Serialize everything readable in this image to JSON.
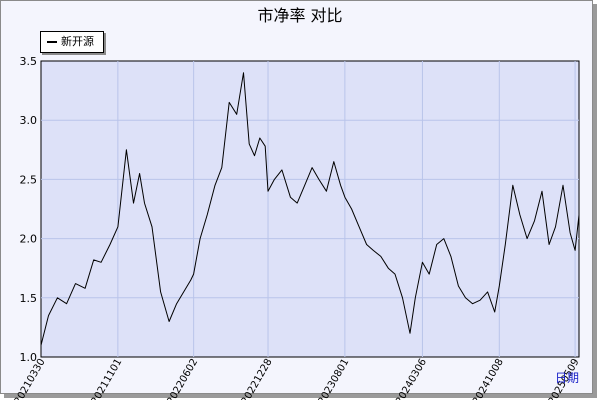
{
  "chart_data": {
    "type": "line",
    "title": "市净率  对比",
    "xlabel": "日期",
    "ylabel": "",
    "ylim": [
      1.0,
      3.5
    ],
    "yticks": [
      "1.0",
      "1.5",
      "2.0",
      "2.5",
      "3.0",
      "3.5"
    ],
    "xtick_labels": [
      "20210330",
      "20211101",
      "20220602",
      "20221228",
      "20230801",
      "20240306",
      "20241008",
      "20250509"
    ],
    "grid": true,
    "legend_position": "top-left",
    "colors": {
      "background": "#f4f5fd",
      "plot_area": "#dde1f8",
      "grid": "#b9c4ea",
      "line": "#000000"
    },
    "series": [
      {
        "name": "新开源",
        "x": [
          "2021-03-30",
          "2021-04-20",
          "2021-05-15",
          "2021-06-10",
          "2021-07-05",
          "2021-08-01",
          "2021-08-25",
          "2021-09-15",
          "2021-10-10",
          "2021-11-01",
          "2021-11-25",
          "2021-12-15",
          "2022-01-01",
          "2022-01-15",
          "2022-02-05",
          "2022-03-01",
          "2022-03-25",
          "2022-04-15",
          "2022-05-05",
          "2022-05-25",
          "2022-06-02",
          "2022-06-20",
          "2022-07-10",
          "2022-08-01",
          "2022-08-20",
          "2022-09-10",
          "2022-10-01",
          "2022-10-20",
          "2022-11-05",
          "2022-11-20",
          "2022-12-05",
          "2022-12-20",
          "2022-12-28",
          "2023-01-15",
          "2023-02-05",
          "2023-03-01",
          "2023-03-20",
          "2023-04-10",
          "2023-05-01",
          "2023-05-20",
          "2023-06-10",
          "2023-07-01",
          "2023-07-20",
          "2023-08-01",
          "2023-08-20",
          "2023-09-10",
          "2023-10-01",
          "2023-10-20",
          "2023-11-10",
          "2023-12-01",
          "2023-12-20",
          "2024-01-10",
          "2024-01-31",
          "2024-02-15",
          "2024-03-06",
          "2024-03-25",
          "2024-04-15",
          "2024-05-05",
          "2024-05-25",
          "2024-06-15",
          "2024-07-05",
          "2024-07-25",
          "2024-08-15",
          "2024-09-05",
          "2024-09-25",
          "2024-10-08",
          "2024-10-25",
          "2024-11-15",
          "2024-12-05",
          "2024-12-25",
          "2025-01-15",
          "2025-02-05",
          "2025-02-25",
          "2025-03-15",
          "2025-04-05",
          "2025-04-25",
          "2025-05-09",
          "2025-05-20"
        ],
        "values": [
          1.1,
          1.35,
          1.5,
          1.45,
          1.62,
          1.58,
          1.82,
          1.8,
          1.95,
          2.1,
          2.75,
          2.3,
          2.55,
          2.3,
          2.1,
          1.55,
          1.3,
          1.45,
          1.55,
          1.65,
          1.7,
          2.0,
          2.2,
          2.45,
          2.6,
          3.15,
          3.05,
          3.4,
          2.8,
          2.7,
          2.85,
          2.78,
          2.4,
          2.5,
          2.58,
          2.35,
          2.3,
          2.45,
          2.6,
          2.5,
          2.4,
          2.65,
          2.45,
          2.35,
          2.25,
          2.1,
          1.95,
          1.9,
          1.85,
          1.75,
          1.7,
          1.5,
          1.2,
          1.5,
          1.8,
          1.7,
          1.95,
          2.0,
          1.85,
          1.6,
          1.5,
          1.45,
          1.48,
          1.55,
          1.38,
          1.6,
          1.95,
          2.45,
          2.2,
          2.0,
          2.15,
          2.4,
          1.95,
          2.1,
          2.45,
          2.05,
          1.9,
          2.2
        ]
      }
    ]
  }
}
